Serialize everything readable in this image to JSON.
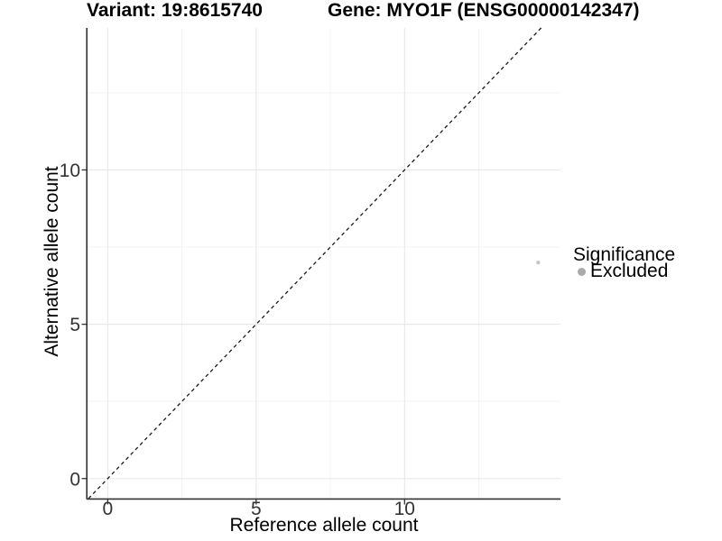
{
  "chart_data": {
    "type": "scatter",
    "titles": {
      "left": "Variant: 19:8615740",
      "right": "Gene: MYO1F (ENSG00000142347)"
    },
    "xlabel": "Reference allele count",
    "ylabel": "Alternative allele count",
    "xlim": [
      -0.68,
      15.25
    ],
    "ylim": [
      -0.65,
      14.6
    ],
    "x_ticks": [
      0,
      5,
      10
    ],
    "y_ticks": [
      0,
      5,
      10
    ],
    "x_minor": [
      2.5,
      7.5,
      12.5
    ],
    "y_minor": [
      2.5,
      7.5,
      12.5
    ],
    "grid": true,
    "identity_line": {
      "slope": 1,
      "intercept": 0,
      "style": "dashed",
      "color": "#1a1a1a"
    },
    "series": [
      {
        "name": "Excluded",
        "color": "#c6c6c6",
        "points": [
          {
            "x": 14.5,
            "y": 7
          }
        ]
      }
    ],
    "legend": {
      "title": "Significance",
      "position": "right",
      "items": [
        {
          "label": "Excluded",
          "color": "#a9a9a9"
        }
      ]
    }
  }
}
